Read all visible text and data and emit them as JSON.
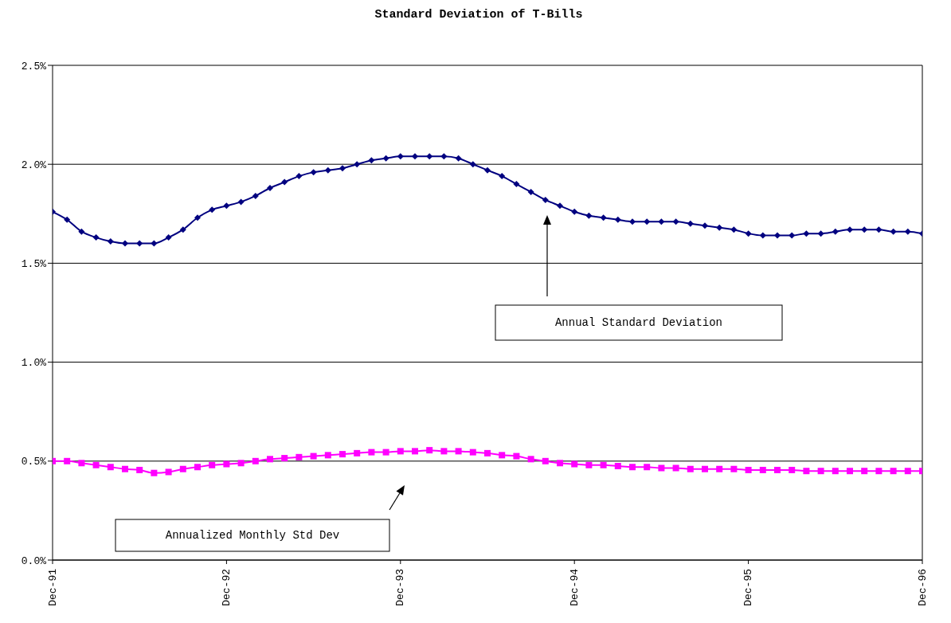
{
  "chart_data": {
    "type": "line",
    "title": "Standard Deviation of T-Bills",
    "x": [
      "1991-12",
      "1992-01",
      "1992-02",
      "1992-03",
      "1992-04",
      "1992-05",
      "1992-06",
      "1992-07",
      "1992-08",
      "1992-09",
      "1992-10",
      "1992-11",
      "1992-12",
      "1993-01",
      "1993-02",
      "1993-03",
      "1993-04",
      "1993-05",
      "1993-06",
      "1993-07",
      "1993-08",
      "1993-09",
      "1993-10",
      "1993-11",
      "1993-12",
      "1994-01",
      "1994-02",
      "1994-03",
      "1994-04",
      "1994-05",
      "1994-06",
      "1994-07",
      "1994-08",
      "1994-09",
      "1994-10",
      "1994-11",
      "1994-12",
      "1995-01",
      "1995-02",
      "1995-03",
      "1995-04",
      "1995-05",
      "1995-06",
      "1995-07",
      "1995-08",
      "1995-09",
      "1995-10",
      "1995-11",
      "1995-12",
      "1996-01",
      "1996-02",
      "1996-03",
      "1996-04",
      "1996-05",
      "1996-06",
      "1996-07",
      "1996-08",
      "1996-09",
      "1996-10",
      "1996-11",
      "1996-12"
    ],
    "series": [
      {
        "color": "#000080",
        "marker": "diamond",
        "values": [
          1.76,
          1.72,
          1.66,
          1.63,
          1.61,
          1.6,
          1.6,
          1.6,
          1.63,
          1.67,
          1.73,
          1.77,
          1.79,
          1.81,
          1.84,
          1.88,
          1.91,
          1.94,
          1.96,
          1.97,
          1.98,
          2.0,
          2.02,
          2.03,
          2.04,
          2.04,
          2.04,
          2.04,
          2.03,
          2.0,
          1.97,
          1.94,
          1.9,
          1.86,
          1.82,
          1.79,
          1.76,
          1.74,
          1.73,
          1.72,
          1.71,
          1.71,
          1.71,
          1.71,
          1.7,
          1.69,
          1.68,
          1.67,
          1.65,
          1.64,
          1.64,
          1.64,
          1.65,
          1.65,
          1.66,
          1.67,
          1.67,
          1.67,
          1.66,
          1.66,
          1.65
        ]
      },
      {
        "color": "#ff00ff",
        "marker": "square",
        "values": [
          0.5,
          0.5,
          0.49,
          0.48,
          0.47,
          0.46,
          0.455,
          0.44,
          0.445,
          0.46,
          0.47,
          0.48,
          0.485,
          0.49,
          0.5,
          0.51,
          0.515,
          0.52,
          0.525,
          0.53,
          0.535,
          0.54,
          0.545,
          0.545,
          0.55,
          0.55,
          0.555,
          0.55,
          0.55,
          0.545,
          0.54,
          0.53,
          0.525,
          0.51,
          0.5,
          0.49,
          0.485,
          0.48,
          0.48,
          0.475,
          0.47,
          0.47,
          0.465,
          0.465,
          0.46,
          0.46,
          0.46,
          0.46,
          0.455,
          0.455,
          0.455,
          0.455,
          0.45,
          0.45,
          0.45,
          0.45,
          0.45,
          0.45,
          0.45,
          0.45,
          0.45
        ]
      }
    ],
    "xlim": [
      "1991-12",
      "1996-12"
    ],
    "xticks": [
      {
        "value": "1991-12",
        "label": "Dec-91"
      },
      {
        "value": "1992-12",
        "label": "Dec-92"
      },
      {
        "value": "1993-12",
        "label": "Dec-93"
      },
      {
        "value": "1994-12",
        "label": "Dec-94"
      },
      {
        "value": "1995-12",
        "label": "Dec-95"
      },
      {
        "value": "1996-12",
        "label": "Dec-96"
      }
    ],
    "ylim": [
      0,
      2.5
    ],
    "yticks": [
      {
        "value": 0,
        "label": "0.0%"
      },
      {
        "value": 0.5,
        "label": "0.5%"
      },
      {
        "value": 1,
        "label": "1.0%"
      },
      {
        "value": 1.5,
        "label": "1.5%"
      },
      {
        "value": 2,
        "label": "2.0%"
      },
      {
        "value": 2.5,
        "label": "2.5%"
      }
    ],
    "grid": "y",
    "legend": false,
    "line_style": "solid",
    "annotations": [
      "Annual Standard Deviation",
      "Annualized Monthly Std Dev"
    ]
  }
}
